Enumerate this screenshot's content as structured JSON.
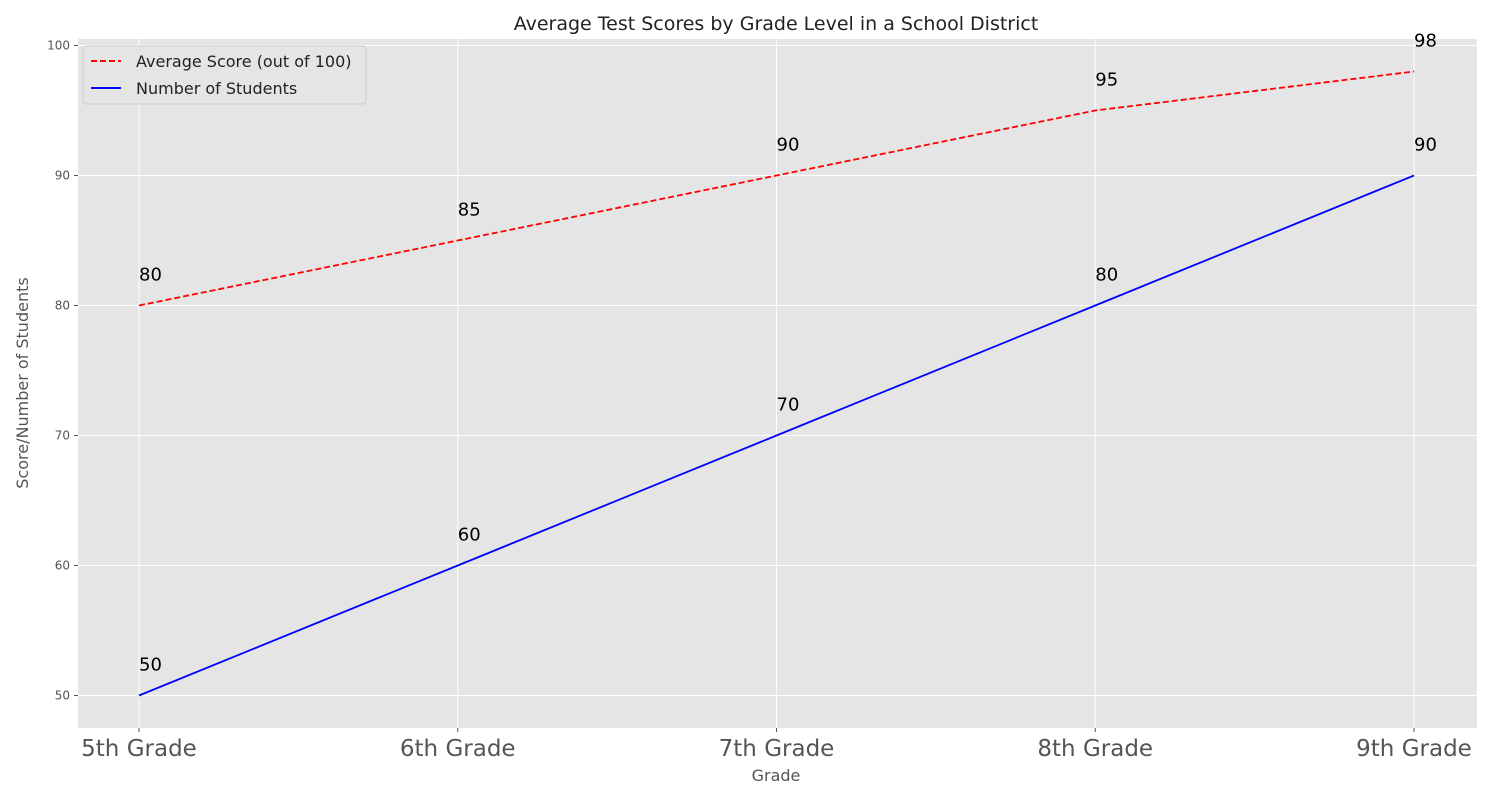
{
  "chart_data": {
    "type": "line",
    "title": "Average Test Scores by Grade Level in a School District",
    "xlabel": "Grade",
    "ylabel": "Score/Number of Students",
    "categories": [
      "5th Grade",
      "6th Grade",
      "7th Grade",
      "8th Grade",
      "9th Grade"
    ],
    "ylim": [
      47.5,
      100.5
    ],
    "yticks": [
      50,
      60,
      70,
      80,
      90,
      100
    ],
    "grid": true,
    "legend_position": "top-left",
    "series": [
      {
        "name": "Average Score (out of 100)",
        "values": [
          80,
          85,
          90,
          95,
          98
        ],
        "color": "#ff0000",
        "style": "dashed"
      },
      {
        "name": "Number of Students",
        "values": [
          50,
          60,
          70,
          80,
          90
        ],
        "color": "#0000ff",
        "style": "solid"
      }
    ]
  }
}
